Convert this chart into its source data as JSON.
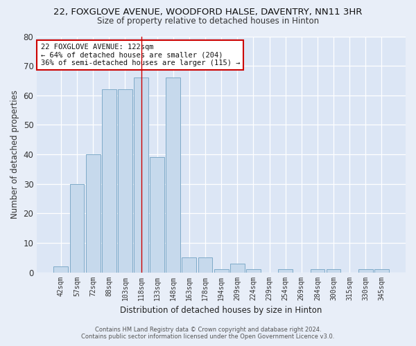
{
  "title_line1": "22, FOXGLOVE AVENUE, WOODFORD HALSE, DAVENTRY, NN11 3HR",
  "title_line2": "Size of property relative to detached houses in Hinton",
  "xlabel": "Distribution of detached houses by size in Hinton",
  "ylabel": "Number of detached properties",
  "bin_labels": [
    "42sqm",
    "57sqm",
    "72sqm",
    "88sqm",
    "103sqm",
    "118sqm",
    "133sqm",
    "148sqm",
    "163sqm",
    "178sqm",
    "194sqm",
    "209sqm",
    "224sqm",
    "239sqm",
    "254sqm",
    "269sqm",
    "284sqm",
    "300sqm",
    "315sqm",
    "330sqm",
    "345sqm"
  ],
  "bar_heights": [
    2,
    30,
    40,
    62,
    62,
    66,
    39,
    66,
    5,
    5,
    1,
    3,
    1,
    0,
    1,
    0,
    1,
    1,
    0,
    1,
    1
  ],
  "bar_color": "#c6d9ec",
  "bar_edge_color": "#7eaac8",
  "background_color": "#dce6f5",
  "fig_background_color": "#e8eef8",
  "ylim": [
    0,
    80
  ],
  "yticks": [
    0,
    10,
    20,
    30,
    40,
    50,
    60,
    70,
    80
  ],
  "vline_bin_index": 5,
  "annotation_title": "22 FOXGLOVE AVENUE: 122sqm",
  "annotation_line2": "← 64% of detached houses are smaller (204)",
  "annotation_line3": "36% of semi-detached houses are larger (115) →",
  "footer_line1": "Contains HM Land Registry data © Crown copyright and database right 2024.",
  "footer_line2": "Contains public sector information licensed under the Open Government Licence v3.0."
}
